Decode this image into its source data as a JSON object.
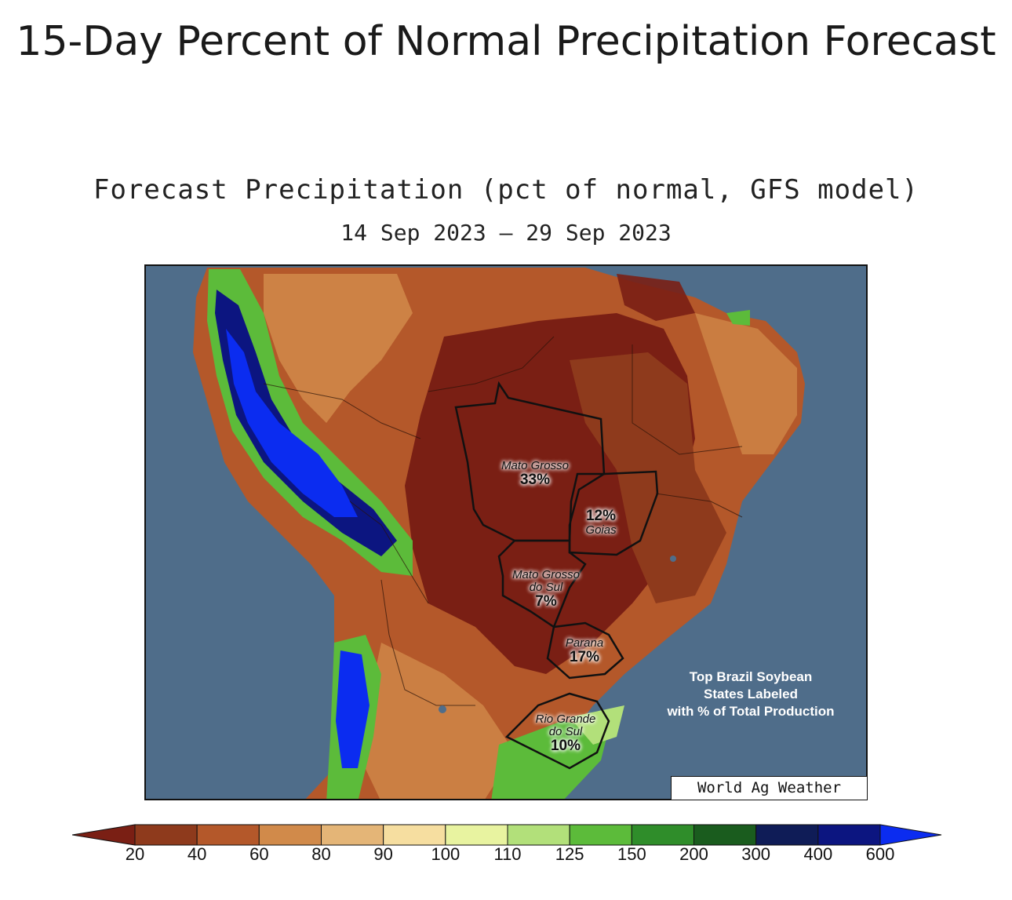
{
  "page": {
    "title": "15-Day Percent of Normal Precipitation Forecast"
  },
  "map": {
    "title": "Forecast Precipitation (pct of normal, GFS model)",
    "dates": "14 Sep 2023 – 29 Sep 2023",
    "credit": "World Ag Weather",
    "note": [
      "Top Brazil Soybean",
      "States Labeled",
      "with % of Total Production"
    ],
    "states": [
      {
        "name": "Mato Grosso",
        "share": "33%"
      },
      {
        "name": "Goias",
        "share": "12%"
      },
      {
        "name": "Mato Grosso do Sul",
        "share": "7%",
        "name_lines": [
          "Mato Grosso",
          "do Sul"
        ]
      },
      {
        "name": "Parana",
        "share": "17%"
      },
      {
        "name": "Rio Grande do Sul",
        "share": "10%",
        "name_lines": [
          "Rio Grande",
          "do Sul"
        ]
      }
    ]
  },
  "legend": {
    "labels": [
      "20",
      "40",
      "60",
      "80",
      "90",
      "100",
      "110",
      "125",
      "150",
      "200",
      "300",
      "400",
      "600"
    ],
    "colors": [
      "#7a1f14",
      "#8e3a1c",
      "#b4582a",
      "#d18a4a",
      "#e4b577",
      "#f6dea0",
      "#e8f3a0",
      "#b2e07a",
      "#5cbb3a",
      "#2f8d2a",
      "#1a5c1e",
      "#0f1c57",
      "#0c1580",
      "#0b2cf0"
    ],
    "ocean_color": "#4f6d8a"
  }
}
